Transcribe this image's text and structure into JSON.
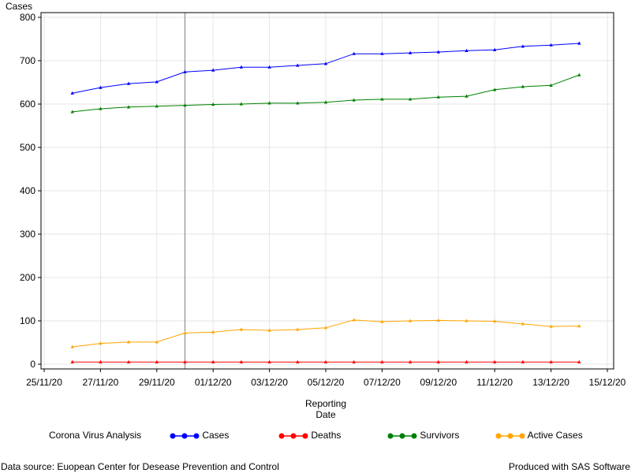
{
  "chart_data": {
    "type": "line",
    "ylabel": "Cases",
    "xlabel_line1": "Reporting",
    "xlabel_line2": "Date",
    "ylim": [
      0,
      800
    ],
    "yticks": [
      0,
      100,
      200,
      300,
      400,
      500,
      600,
      700,
      800
    ],
    "x_range": [
      "2020-11-25",
      "2020-12-15"
    ],
    "xticks": [
      "25/11/20",
      "27/11/20",
      "29/11/20",
      "01/12/20",
      "03/12/20",
      "05/12/20",
      "07/12/20",
      "09/12/20",
      "11/12/20",
      "13/12/20",
      "15/12/20"
    ],
    "x": [
      "2020-11-26",
      "2020-11-27",
      "2020-11-28",
      "2020-11-29",
      "2020-11-30",
      "2020-12-01",
      "2020-12-02",
      "2020-12-03",
      "2020-12-04",
      "2020-12-05",
      "2020-12-06",
      "2020-12-07",
      "2020-12-08",
      "2020-12-09",
      "2020-12-10",
      "2020-12-11",
      "2020-12-12",
      "2020-12-13",
      "2020-12-14"
    ],
    "reference_line_x": "2020-11-30",
    "grid": true,
    "series": [
      {
        "name": "Cases",
        "color": "#0000ff",
        "values": [
          625,
          638,
          647,
          651,
          674,
          678,
          685,
          685,
          689,
          693,
          716,
          716,
          718,
          720,
          723,
          725,
          733,
          736,
          740
        ]
      },
      {
        "name": "Deaths",
        "color": "#ff0000",
        "values": [
          5,
          5,
          5,
          5,
          5,
          5,
          5,
          5,
          5,
          5,
          5,
          5,
          5,
          5,
          5,
          5,
          5,
          5,
          5
        ]
      },
      {
        "name": "Survivors",
        "color": "#008000",
        "values": [
          582,
          589,
          593,
          595,
          597,
          599,
          600,
          602,
          602,
          604,
          609,
          611,
          611,
          616,
          618,
          633,
          640,
          643,
          667
        ]
      },
      {
        "name": "Active Cases",
        "color": "#ffa500",
        "values": [
          40,
          48,
          51,
          51,
          72,
          74,
          80,
          78,
          80,
          84,
          102,
          98,
          100,
          101,
          100,
          99,
          93,
          87,
          88
        ]
      }
    ],
    "legend_title": "Corona Virus Analysis",
    "legend_position": "bottom"
  },
  "footer": {
    "source": "Data source: Euopean Center for Desease Prevention and Control",
    "produced": "Produced with SAS Software"
  }
}
